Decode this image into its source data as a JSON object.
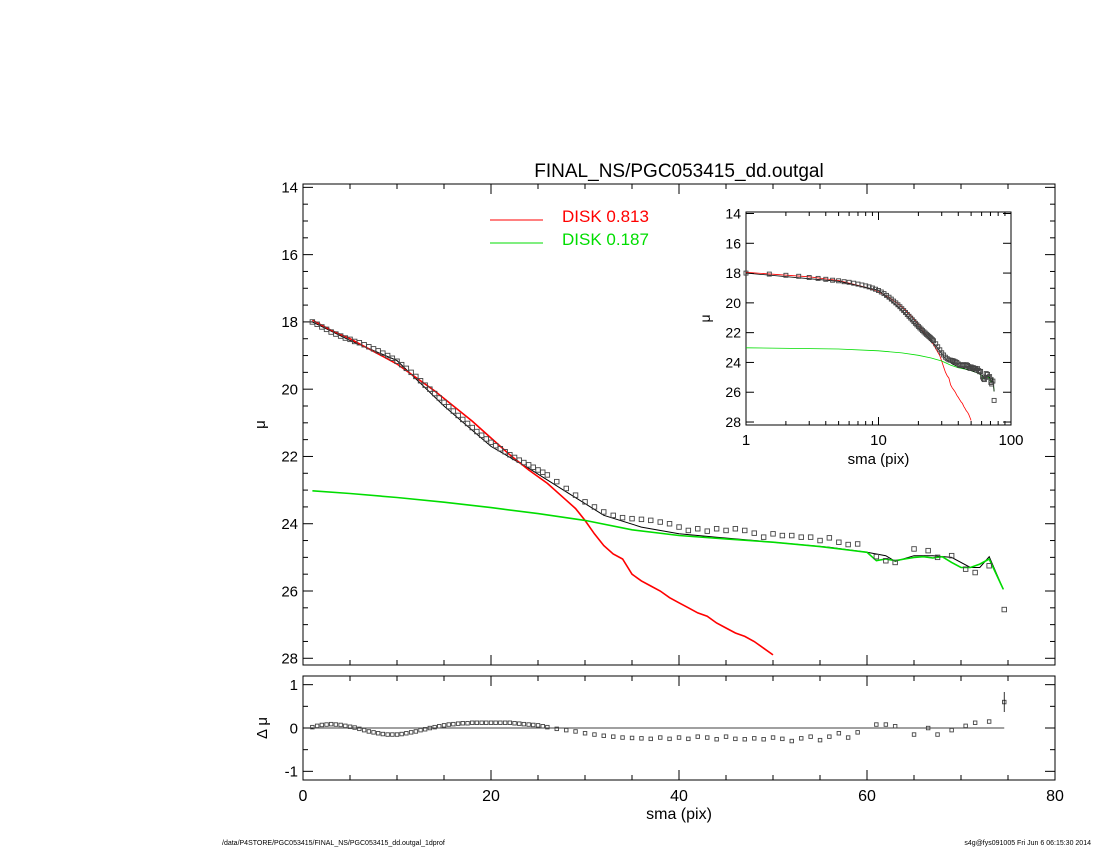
{
  "title": "FINAL_NS/PGC053415_dd.outgal",
  "footer": {
    "left": "/data/P4STORE/PGC053415/FINAL_NS/PGC053415_dd.outgal_1dprof",
    "right": "s4g@fys091005  Fri Jun  6 06:15:30 2014"
  },
  "colors": {
    "disk1": "#ff0000",
    "disk2": "#00dd00",
    "data": "#444444",
    "model": "#000000"
  },
  "chart_data": [
    {
      "type": "scatter",
      "panel": "main",
      "title": "FINAL_NS/PGC053415_dd.outgal",
      "xlabel": "sma (pix)",
      "ylabel": "μ",
      "xlim": [
        0,
        80
      ],
      "ylim": [
        28.2,
        13.9
      ],
      "y_inverted": true,
      "xticks": [
        "0",
        "20",
        "40",
        "60",
        "80"
      ],
      "yticks": [
        "14",
        "16",
        "18",
        "20",
        "22",
        "24",
        "26",
        "28"
      ],
      "legend": {
        "placement": "top-center",
        "entries": [
          {
            "label": "DISK",
            "value": "0.813",
            "color": "#ff0000"
          },
          {
            "label": "DISK",
            "value": "0.187",
            "color": "#00dd00"
          }
        ]
      },
      "data_points": {
        "x": [
          1,
          1.5,
          2,
          2.5,
          3,
          3.5,
          4,
          4.5,
          5,
          5.5,
          6,
          6.5,
          7,
          7.5,
          8,
          8.5,
          9,
          9.5,
          10,
          10.5,
          11,
          11.5,
          12,
          12.5,
          13,
          13.5,
          14,
          14.5,
          15,
          15.5,
          16,
          16.5,
          17,
          17.5,
          18,
          18.5,
          19,
          19.5,
          20,
          20.5,
          21,
          21.5,
          22,
          22.5,
          23,
          23.5,
          24,
          24.5,
          25,
          25.5,
          26,
          27,
          28,
          29,
          30,
          31,
          32,
          33,
          34,
          35,
          36,
          37,
          38,
          39,
          40,
          41,
          42,
          43,
          44,
          45,
          46,
          47,
          48,
          49,
          50,
          51,
          52,
          53,
          54,
          55,
          56,
          57,
          58,
          59,
          61,
          62,
          63,
          65,
          66.5,
          67.5,
          69,
          70.5,
          71.5,
          73,
          74.6
        ],
        "y": [
          18.0,
          18.07,
          18.15,
          18.22,
          18.3,
          18.36,
          18.42,
          18.48,
          18.52,
          18.58,
          18.62,
          18.68,
          18.74,
          18.8,
          18.86,
          18.93,
          19.0,
          19.08,
          19.17,
          19.27,
          19.38,
          19.5,
          19.62,
          19.75,
          19.88,
          20.0,
          20.13,
          20.26,
          20.39,
          20.52,
          20.65,
          20.78,
          20.9,
          21.02,
          21.14,
          21.26,
          21.37,
          21.48,
          21.58,
          21.68,
          21.77,
          21.86,
          21.95,
          22.03,
          22.11,
          22.18,
          22.25,
          22.32,
          22.4,
          22.47,
          22.55,
          22.75,
          22.95,
          23.15,
          23.35,
          23.5,
          23.65,
          23.75,
          23.82,
          23.85,
          23.87,
          23.9,
          23.95,
          24.0,
          24.1,
          24.2,
          24.15,
          24.22,
          24.15,
          24.2,
          24.15,
          24.2,
          24.28,
          24.4,
          24.3,
          24.35,
          24.35,
          24.4,
          24.4,
          24.5,
          24.42,
          24.55,
          24.62,
          24.6,
          24.98,
          25.1,
          25.15,
          24.75,
          24.8,
          25.0,
          24.95,
          25.35,
          25.45,
          25.25,
          26.55
        ]
      },
      "model_total": {
        "x": [
          1,
          5,
          10,
          15,
          20,
          24,
          28,
          32,
          36,
          40,
          44,
          48,
          52,
          56,
          60,
          62,
          63,
          65,
          67,
          69,
          71,
          72,
          73,
          74.5
        ],
        "y": [
          18.0,
          18.55,
          19.15,
          20.5,
          21.7,
          22.35,
          23.05,
          23.75,
          24.1,
          24.3,
          24.4,
          24.5,
          24.6,
          24.7,
          24.85,
          24.95,
          25.12,
          24.95,
          24.95,
          25.0,
          25.3,
          25.3,
          24.98,
          25.95
        ]
      },
      "series": [
        {
          "label": "DISK 0.813",
          "color": "#ff0000",
          "x": [
            1,
            3,
            5,
            8,
            10,
            12,
            14,
            16,
            18,
            20,
            22,
            24,
            26,
            28,
            29,
            30,
            31,
            32,
            33,
            34,
            35,
            36,
            37,
            38,
            39,
            40,
            41,
            42,
            43,
            44,
            45,
            46,
            47,
            48,
            49,
            50
          ],
          "y": [
            17.95,
            18.25,
            18.5,
            18.95,
            19.25,
            19.65,
            20.05,
            20.5,
            20.95,
            21.45,
            21.95,
            22.4,
            22.8,
            23.3,
            23.55,
            23.9,
            24.3,
            24.65,
            24.9,
            25.05,
            25.5,
            25.7,
            25.85,
            26.0,
            26.2,
            26.35,
            26.5,
            26.65,
            26.75,
            26.95,
            27.1,
            27.25,
            27.35,
            27.5,
            27.7,
            27.9
          ]
        },
        {
          "label": "DISK 0.187",
          "color": "#00dd00",
          "x": [
            1,
            5,
            10,
            15,
            20,
            25,
            30,
            35,
            40,
            45,
            50,
            55,
            58,
            60,
            61,
            62,
            63,
            64,
            65,
            66,
            67,
            68,
            69,
            70,
            71,
            72,
            73,
            74.5
          ],
          "y": [
            23.02,
            23.1,
            23.22,
            23.36,
            23.52,
            23.7,
            23.9,
            24.18,
            24.35,
            24.45,
            24.55,
            24.68,
            24.78,
            24.85,
            25.1,
            25.05,
            25.1,
            25.05,
            25.0,
            24.98,
            25.02,
            24.98,
            25.15,
            25.3,
            25.3,
            25.2,
            25.05,
            25.95
          ]
        }
      ]
    },
    {
      "type": "scatter",
      "panel": "residual",
      "xlabel": "sma (pix)",
      "ylabel": "Δ μ",
      "xlim": [
        0,
        80
      ],
      "ylim": [
        -1.2,
        1.2
      ],
      "xticks": [
        "0",
        "20",
        "40",
        "60",
        "80"
      ],
      "yticks": [
        "1",
        "0",
        "-1"
      ],
      "residuals": {
        "x": [
          1,
          1.5,
          2,
          2.5,
          3,
          3.5,
          4,
          4.5,
          5,
          5.5,
          6,
          6.5,
          7,
          7.5,
          8,
          8.5,
          9,
          9.5,
          10,
          10.5,
          11,
          11.5,
          12,
          12.5,
          13,
          13.5,
          14,
          14.5,
          15,
          15.5,
          16,
          16.5,
          17,
          17.5,
          18,
          18.5,
          19,
          19.5,
          20,
          20.5,
          21,
          21.5,
          22,
          22.5,
          23,
          23.5,
          24,
          24.5,
          25,
          25.5,
          26,
          27,
          28,
          29,
          30,
          31,
          32,
          33,
          34,
          35,
          36,
          37,
          38,
          39,
          40,
          41,
          42,
          43,
          44,
          45,
          46,
          47,
          48,
          49,
          50,
          51,
          52,
          53,
          54,
          55,
          56,
          57,
          58,
          59,
          61,
          62,
          63,
          65,
          66.5,
          67.5,
          69,
          70.5,
          71.5,
          73,
          74.6
        ],
        "y": [
          0.02,
          0.05,
          0.07,
          0.08,
          0.09,
          0.08,
          0.07,
          0.05,
          0.03,
          0.01,
          -0.02,
          -0.05,
          -0.08,
          -0.1,
          -0.12,
          -0.14,
          -0.15,
          -0.15,
          -0.15,
          -0.14,
          -0.12,
          -0.1,
          -0.08,
          -0.05,
          -0.03,
          0.0,
          0.02,
          0.04,
          0.06,
          0.08,
          0.09,
          0.1,
          0.11,
          0.11,
          0.12,
          0.12,
          0.12,
          0.12,
          0.12,
          0.12,
          0.12,
          0.12,
          0.12,
          0.11,
          0.1,
          0.09,
          0.08,
          0.07,
          0.06,
          0.04,
          0.02,
          -0.02,
          -0.05,
          -0.08,
          -0.12,
          -0.15,
          -0.18,
          -0.2,
          -0.22,
          -0.23,
          -0.24,
          -0.25,
          -0.22,
          -0.25,
          -0.22,
          -0.25,
          -0.2,
          -0.22,
          -0.26,
          -0.2,
          -0.25,
          -0.26,
          -0.24,
          -0.26,
          -0.22,
          -0.25,
          -0.3,
          -0.24,
          -0.2,
          -0.28,
          -0.2,
          -0.12,
          -0.22,
          -0.1,
          0.08,
          0.08,
          0.04,
          -0.15,
          0.0,
          -0.15,
          -0.05,
          0.05,
          0.12,
          0.15,
          0.6
        ]
      }
    },
    {
      "type": "scatter",
      "panel": "inset",
      "xlabel": "sma (pix)",
      "ylabel": "μ",
      "x_scale": "log",
      "xlim": [
        1,
        100
      ],
      "ylim": [
        28.2,
        13.9
      ],
      "y_inverted": true,
      "xticks": [
        "1",
        "10",
        "100"
      ],
      "yticks": [
        "14",
        "16",
        "18",
        "20",
        "22",
        "24",
        "26",
        "28"
      ]
    }
  ]
}
